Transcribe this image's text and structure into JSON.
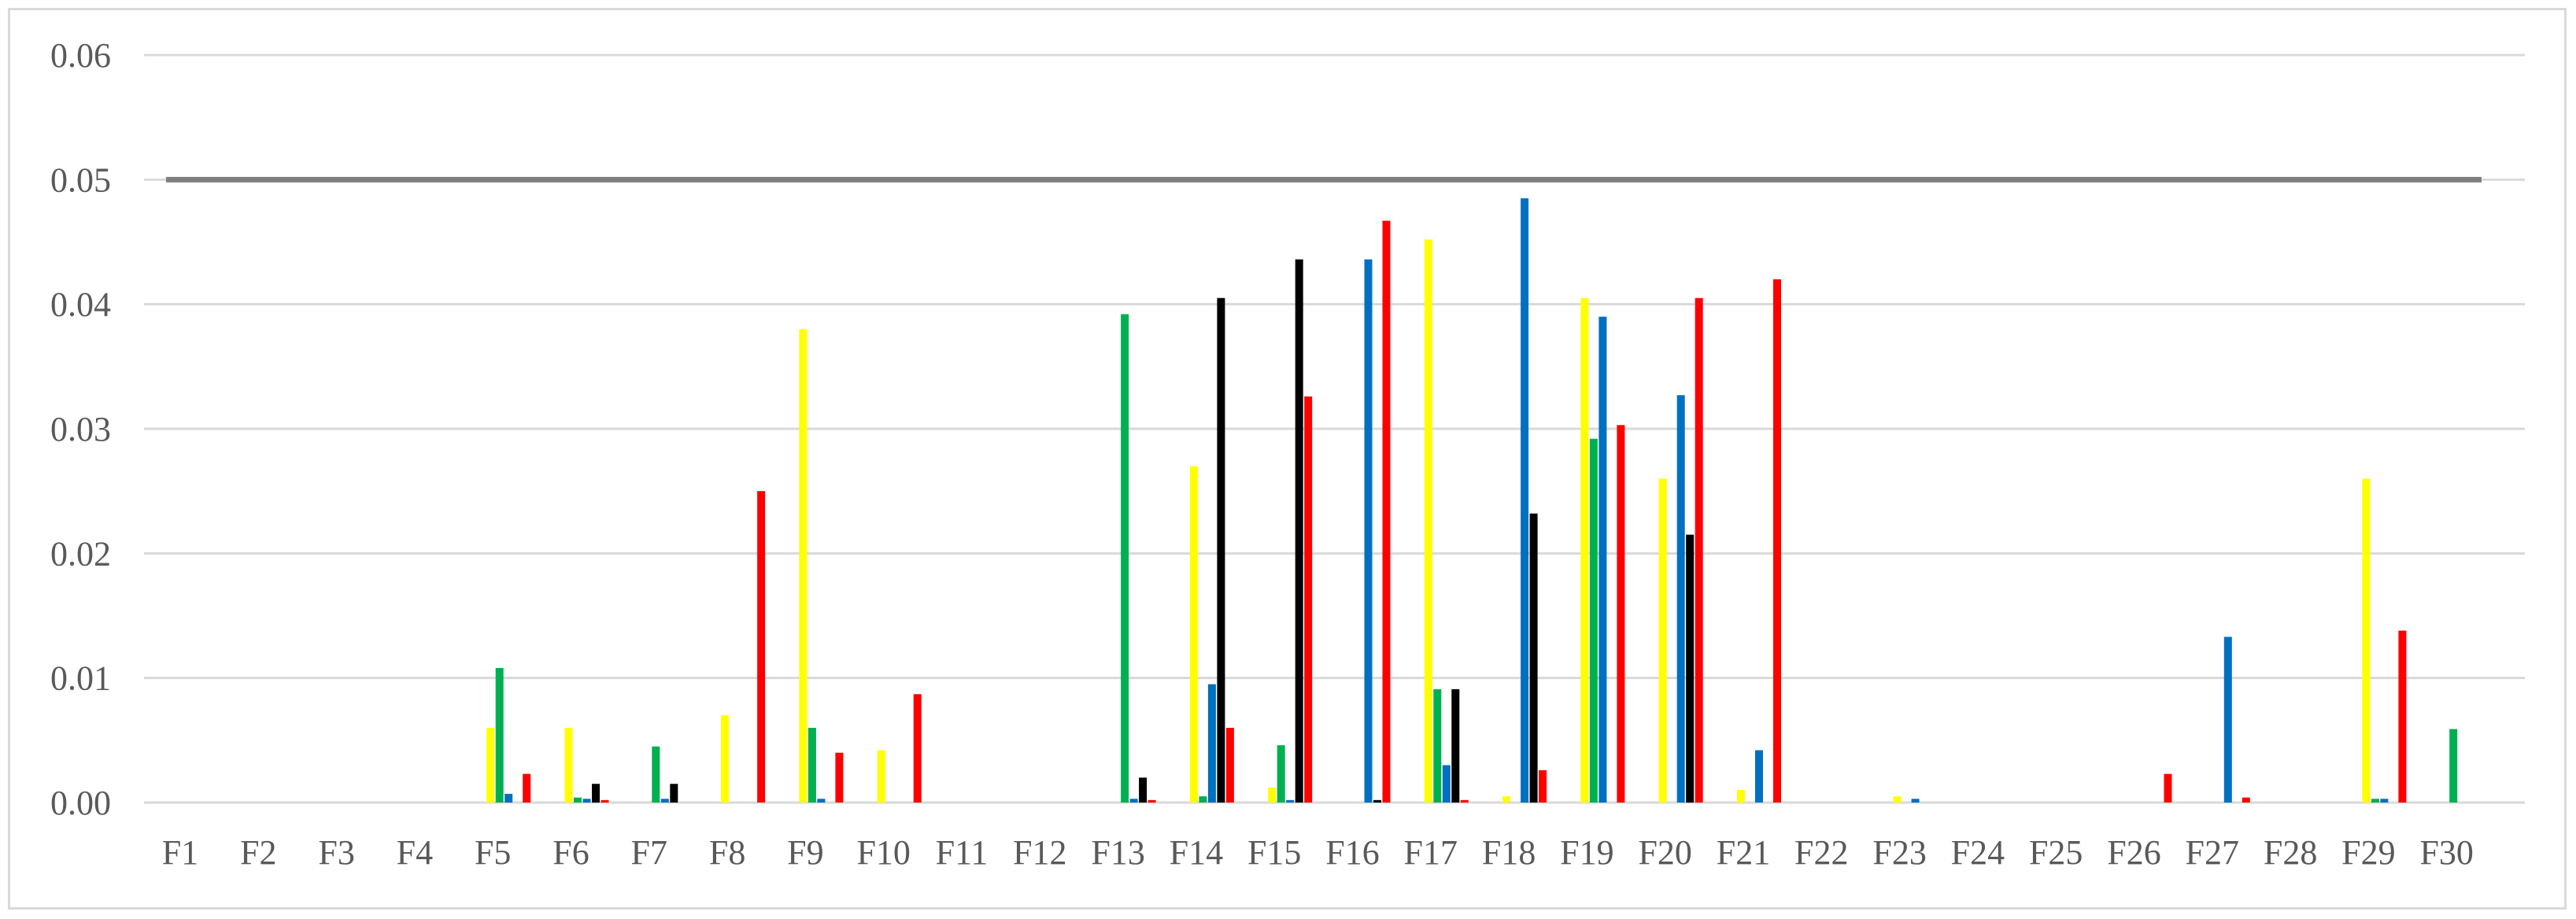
{
  "chart_data": {
    "type": "bar",
    "ylim": [
      0,
      0.06
    ],
    "yticks": [
      "0.00",
      "0.01",
      "0.02",
      "0.03",
      "0.04",
      "0.05",
      "0.06"
    ],
    "categories": [
      "F1",
      "F2",
      "F3",
      "F4",
      "F5",
      "F6",
      "F7",
      "F8",
      "F9",
      "F10",
      "F11",
      "F12",
      "F13",
      "F14",
      "F15",
      "F16",
      "F17",
      "F18",
      "F19",
      "F20",
      "F21",
      "F22",
      "F23",
      "F24",
      "F25",
      "F26",
      "F27",
      "F28",
      "F29",
      "F30"
    ],
    "reference_line": 0.05,
    "grid": true,
    "legend": "none",
    "colors": {
      "yellow": "#ffff00",
      "green": "#00b050",
      "blue": "#0070c0",
      "black": "#000000",
      "red": "#ff0000",
      "grid": "#d9d9d9",
      "reference": "#7f7f7f"
    },
    "series": [
      {
        "color": "#ffff00",
        "values": [
          0,
          0,
          0,
          0,
          0.006,
          0.006,
          0,
          0.007,
          0.038,
          0.0042,
          0,
          0,
          0,
          0.027,
          0.0012,
          0,
          0.0452,
          0.0005,
          0.0405,
          0.026,
          0.001,
          0,
          0.0005,
          0,
          0,
          0,
          0,
          0,
          0.026,
          0
        ]
      },
      {
        "color": "#00b050",
        "values": [
          0,
          0,
          0,
          0,
          0.0108,
          0.0004,
          0.0045,
          0,
          0.006,
          0,
          0,
          0,
          0.0392,
          0.0005,
          0.0046,
          0,
          0.0091,
          0,
          0.0292,
          0,
          0,
          0,
          0,
          0,
          0,
          0,
          0,
          0,
          0.0003,
          0.0059
        ]
      },
      {
        "color": "#0070c0",
        "values": [
          0,
          0,
          0,
          0,
          0.0007,
          0.0003,
          0.0003,
          0,
          0.0003,
          0,
          0,
          0,
          0.0003,
          0.0095,
          0.0002,
          0.0436,
          0.003,
          0.0485,
          0.039,
          0.0327,
          0.0042,
          0,
          0.0003,
          0,
          0,
          0,
          0.0133,
          0,
          0.0003,
          0
        ]
      },
      {
        "color": "#000000",
        "values": [
          0,
          0,
          0,
          0,
          0,
          0.0015,
          0.0015,
          0,
          0,
          0,
          0,
          0,
          0.002,
          0.0405,
          0.0436,
          0.0002,
          0.0091,
          0.0232,
          0,
          0.0215,
          0,
          0,
          0,
          0,
          0,
          0,
          0,
          0,
          0,
          0
        ]
      },
      {
        "color": "#ff0000",
        "values": [
          0,
          0,
          0,
          0,
          0.0023,
          0.0002,
          0,
          0.025,
          0.004,
          0.0087,
          0,
          0,
          0.0002,
          0.006,
          0.0326,
          0.0467,
          0.0002,
          0.0026,
          0.0303,
          0.0405,
          0.042,
          0,
          0,
          0,
          0,
          0.0023,
          0.0004,
          0,
          0.0138,
          0
        ]
      }
    ]
  }
}
